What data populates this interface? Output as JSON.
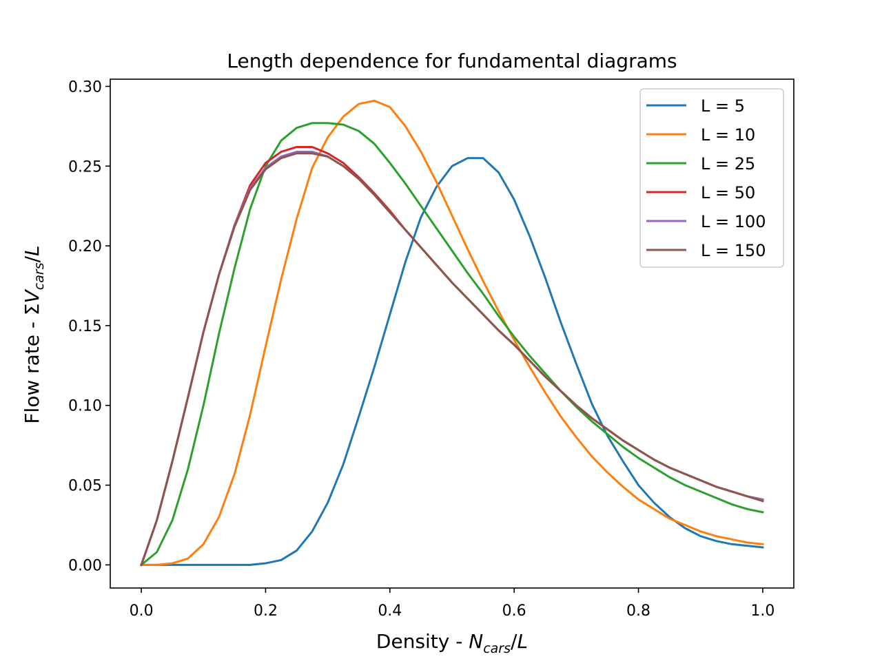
{
  "chart_data": {
    "type": "line",
    "title": "Length dependence for fundamental diagrams",
    "xlabel": {
      "prefix": "Density - ",
      "parts": [
        {
          "t": "N",
          "italic": true
        },
        {
          "t": "cars",
          "italic": true,
          "sub": true
        },
        {
          "t": "/",
          "italic": false
        },
        {
          "t": "L",
          "italic": true
        }
      ]
    },
    "ylabel": {
      "prefix": "Flow rate - ",
      "parts": [
        {
          "t": "Σ",
          "italic": false
        },
        {
          "t": "V",
          "italic": true
        },
        {
          "t": "cars",
          "italic": true,
          "sub": true
        },
        {
          "t": "/",
          "italic": false
        },
        {
          "t": "L",
          "italic": true
        }
      ]
    },
    "xlim": [
      -0.05,
      1.05
    ],
    "ylim": [
      -0.0145,
      0.3045
    ],
    "xticks": [
      0.0,
      0.2,
      0.4,
      0.6,
      0.8,
      1.0
    ],
    "xtick_labels": [
      "0.0",
      "0.2",
      "0.4",
      "0.6",
      "0.8",
      "1.0"
    ],
    "yticks": [
      0.0,
      0.05,
      0.1,
      0.15,
      0.2,
      0.25,
      0.3
    ],
    "ytick_labels": [
      "0.00",
      "0.05",
      "0.10",
      "0.15",
      "0.20",
      "0.25",
      "0.30"
    ],
    "grid": false,
    "legend_position": "top-right",
    "x": [
      0.0,
      0.025,
      0.05,
      0.075,
      0.1,
      0.125,
      0.15,
      0.175,
      0.2,
      0.225,
      0.25,
      0.275,
      0.3,
      0.325,
      0.35,
      0.375,
      0.4,
      0.425,
      0.45,
      0.475,
      0.5,
      0.525,
      0.55,
      0.575,
      0.6,
      0.625,
      0.65,
      0.675,
      0.7,
      0.725,
      0.75,
      0.775,
      0.8,
      0.825,
      0.85,
      0.875,
      0.9,
      0.925,
      0.95,
      0.975,
      1.0
    ],
    "series": [
      {
        "name": "L = 5",
        "color": "#1f77b4",
        "values": [
          0.0,
          0.0,
          0.0,
          0.0,
          0.0,
          0.0,
          0.0,
          0.0,
          0.001,
          0.003,
          0.009,
          0.021,
          0.039,
          0.063,
          0.093,
          0.124,
          0.157,
          0.19,
          0.218,
          0.237,
          0.25,
          0.255,
          0.255,
          0.246,
          0.229,
          0.206,
          0.18,
          0.152,
          0.126,
          0.101,
          0.081,
          0.065,
          0.05,
          0.039,
          0.03,
          0.023,
          0.018,
          0.015,
          0.013,
          0.012,
          0.011
        ]
      },
      {
        "name": "L = 10",
        "color": "#ff7f0e",
        "values": [
          0.0,
          0.0,
          0.001,
          0.004,
          0.013,
          0.03,
          0.057,
          0.094,
          0.137,
          0.179,
          0.217,
          0.249,
          0.268,
          0.281,
          0.289,
          0.291,
          0.287,
          0.275,
          0.259,
          0.24,
          0.219,
          0.198,
          0.178,
          0.159,
          0.141,
          0.124,
          0.108,
          0.093,
          0.08,
          0.068,
          0.058,
          0.049,
          0.041,
          0.035,
          0.029,
          0.025,
          0.021,
          0.018,
          0.016,
          0.014,
          0.013
        ]
      },
      {
        "name": "L = 25",
        "color": "#2ca02c",
        "values": [
          0.0,
          0.008,
          0.028,
          0.06,
          0.1,
          0.145,
          0.186,
          0.223,
          0.25,
          0.266,
          0.274,
          0.277,
          0.277,
          0.276,
          0.272,
          0.264,
          0.252,
          0.239,
          0.225,
          0.211,
          0.197,
          0.183,
          0.17,
          0.156,
          0.143,
          0.131,
          0.12,
          0.109,
          0.099,
          0.09,
          0.082,
          0.074,
          0.067,
          0.061,
          0.055,
          0.05,
          0.046,
          0.042,
          0.038,
          0.035,
          0.033
        ]
      },
      {
        "name": "L = 50",
        "color": "#d62728",
        "values": [
          0.0,
          0.028,
          0.065,
          0.105,
          0.146,
          0.182,
          0.213,
          0.238,
          0.252,
          0.259,
          0.262,
          0.262,
          0.258,
          0.252,
          0.243,
          0.233,
          0.222,
          0.21,
          0.199,
          0.188,
          0.177,
          0.167,
          0.157,
          0.147,
          0.138,
          0.128,
          0.118,
          0.109,
          0.1,
          0.092,
          0.085,
          0.078,
          0.072,
          0.066,
          0.061,
          0.057,
          0.053,
          0.049,
          0.046,
          0.043,
          0.041
        ]
      },
      {
        "name": "L = 100",
        "color": "#9467bd",
        "values": [
          0.0,
          0.028,
          0.065,
          0.105,
          0.146,
          0.182,
          0.213,
          0.236,
          0.249,
          0.256,
          0.259,
          0.259,
          0.256,
          0.25,
          0.242,
          0.232,
          0.221,
          0.21,
          0.199,
          0.188,
          0.177,
          0.167,
          0.157,
          0.147,
          0.138,
          0.128,
          0.118,
          0.109,
          0.1,
          0.092,
          0.085,
          0.078,
          0.072,
          0.066,
          0.061,
          0.057,
          0.053,
          0.049,
          0.046,
          0.043,
          0.041
        ]
      },
      {
        "name": "L = 150",
        "color": "#8c564b",
        "values": [
          0.0,
          0.028,
          0.065,
          0.105,
          0.146,
          0.182,
          0.212,
          0.235,
          0.248,
          0.255,
          0.258,
          0.258,
          0.256,
          0.25,
          0.242,
          0.232,
          0.221,
          0.21,
          0.199,
          0.188,
          0.177,
          0.167,
          0.157,
          0.147,
          0.138,
          0.128,
          0.118,
          0.109,
          0.1,
          0.092,
          0.085,
          0.078,
          0.072,
          0.066,
          0.061,
          0.057,
          0.053,
          0.049,
          0.046,
          0.043,
          0.04
        ]
      }
    ]
  }
}
